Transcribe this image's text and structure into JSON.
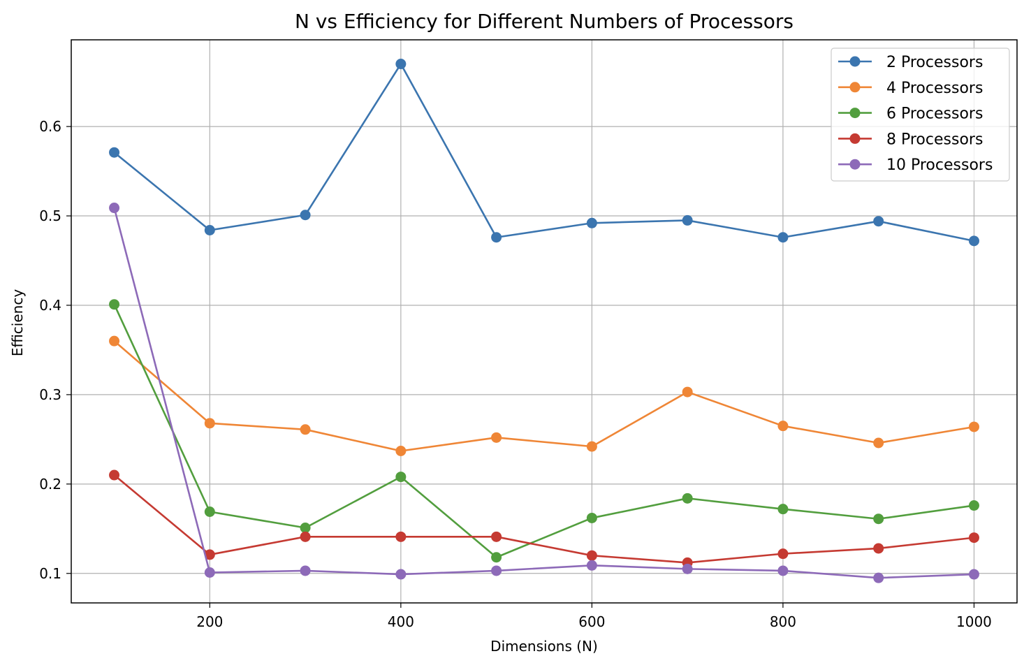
{
  "chart_data": {
    "type": "line",
    "title": "N vs Efficiency for Different Numbers of Processors",
    "xlabel": "Dimensions (N)",
    "ylabel": "Efficiency",
    "x": [
      100,
      200,
      300,
      400,
      500,
      600,
      700,
      800,
      900,
      1000
    ],
    "xlim": [
      55,
      1045
    ],
    "ylim": [
      0.067,
      0.697
    ],
    "xticks": [
      200,
      400,
      600,
      800,
      1000
    ],
    "xtick_labels": [
      "200",
      "400",
      "600",
      "800",
      "1000"
    ],
    "yticks": [
      0.1,
      0.2,
      0.3,
      0.4,
      0.5,
      0.6
    ],
    "ytick_labels": [
      "0.1",
      "0.2",
      "0.3",
      "0.4",
      "0.5",
      "0.6"
    ],
    "grid": true,
    "legend_position": "top-right",
    "marker": "circle",
    "series": [
      {
        "name": "2 Processors",
        "color": "#3b75af",
        "values": [
          0.571,
          0.484,
          0.501,
          0.67,
          0.476,
          0.492,
          0.495,
          0.476,
          0.494,
          0.472
        ]
      },
      {
        "name": "4 Processors",
        "color": "#ef8636",
        "values": [
          0.36,
          0.268,
          0.261,
          0.237,
          0.252,
          0.242,
          0.303,
          0.265,
          0.246,
          0.264
        ]
      },
      {
        "name": "6 Processors",
        "color": "#529e3e",
        "values": [
          0.401,
          0.169,
          0.151,
          0.208,
          0.118,
          0.162,
          0.184,
          0.172,
          0.161,
          0.176
        ]
      },
      {
        "name": "8 Processors",
        "color": "#c53a32",
        "values": [
          0.21,
          0.121,
          0.141,
          0.141,
          0.141,
          0.12,
          0.112,
          0.122,
          0.128,
          0.14
        ]
      },
      {
        "name": "10 Processors",
        "color": "#8d6ab8",
        "values": [
          0.509,
          0.101,
          0.103,
          0.099,
          0.103,
          0.109,
          0.105,
          0.103,
          0.095,
          0.099
        ]
      }
    ]
  }
}
